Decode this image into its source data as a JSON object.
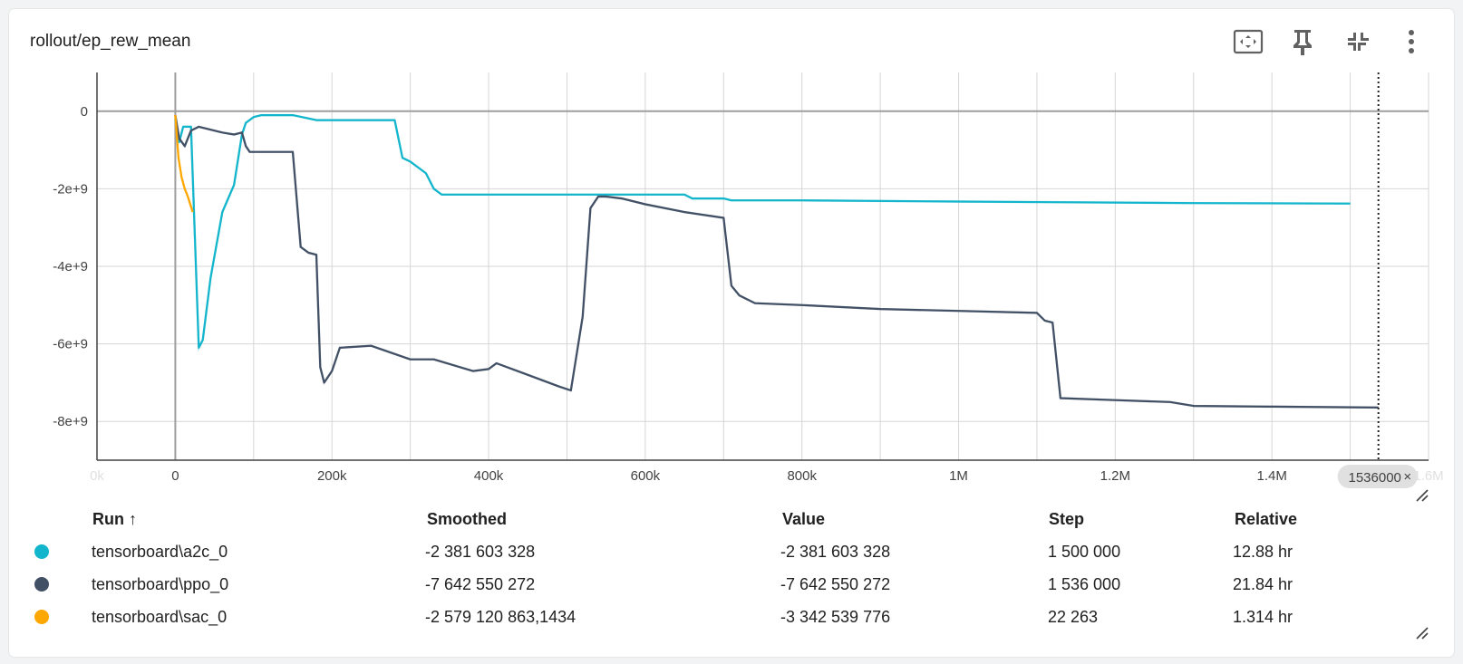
{
  "card": {
    "title": "rollout/ep_rew_mean",
    "toolbar": [
      {
        "name": "fit-to-data-icon"
      },
      {
        "name": "pin-icon"
      },
      {
        "name": "collapse-icon"
      },
      {
        "name": "more-vert-icon"
      }
    ]
  },
  "chart_data": {
    "type": "line",
    "title": "rollout/ep_rew_mean",
    "xlim": [
      -100000,
      1600000
    ],
    "ylim": [
      -9000000000,
      1000000000
    ],
    "x_ticks": [
      "0k",
      "0",
      "200k",
      "400k",
      "600k",
      "800k",
      "1M",
      "1.2M",
      "1.4M",
      "1.6M"
    ],
    "y_ticks": [
      "0",
      "-2e+9",
      "-4e+9",
      "-6e+9",
      "-8e+9"
    ],
    "hover_x_label": "1536000",
    "hover_x": 1536000,
    "grid": true,
    "series": [
      {
        "name": "tensorboard\\a2c_0",
        "color": "#12b5cb",
        "x": [
          0,
          5000,
          10000,
          20000,
          30000,
          35000,
          45000,
          60000,
          75000,
          85000,
          90000,
          100000,
          110000,
          150000,
          180000,
          280000,
          290000,
          300000,
          320000,
          330000,
          340000,
          400000,
          650000,
          660000,
          700000,
          710000,
          800000,
          1000000,
          1300000,
          1500000
        ],
        "y": [
          -200000000,
          -800000000,
          -400000000,
          -400000000,
          -6100000000,
          -5900000000,
          -4300000000,
          -2600000000,
          -1900000000,
          -600000000,
          -300000000,
          -150000000,
          -100000000,
          -100000000,
          -230000000,
          -230000000,
          -1200000000,
          -1300000000,
          -1600000000,
          -2000000000,
          -2150000000,
          -2150000000,
          -2150000000,
          -2250000000,
          -2250000000,
          -2300000000,
          -2300000000,
          -2330000000,
          -2370000000,
          -2381603328
        ]
      },
      {
        "name": "tensorboard\\ppo_0",
        "color": "#425066",
        "x": [
          0,
          5000,
          12000,
          20000,
          30000,
          50000,
          60000,
          75000,
          85000,
          90000,
          95000,
          110000,
          150000,
          160000,
          170000,
          180000,
          185000,
          190000,
          200000,
          210000,
          250000,
          300000,
          330000,
          380000,
          400000,
          410000,
          450000,
          490000,
          505000,
          520000,
          530000,
          540000,
          550000,
          570000,
          600000,
          650000,
          700000,
          710000,
          720000,
          740000,
          800000,
          900000,
          1000000,
          1100000,
          1110000,
          1120000,
          1130000,
          1200000,
          1270000,
          1300000,
          1400000,
          1536000
        ],
        "y": [
          -100000000,
          -700000000,
          -900000000,
          -500000000,
          -400000000,
          -500000000,
          -550000000,
          -600000000,
          -550000000,
          -900000000,
          -1050000000,
          -1050000000,
          -1050000000,
          -3500000000,
          -3650000000,
          -3700000000,
          -6600000000,
          -7000000000,
          -6700000000,
          -6100000000,
          -6050000000,
          -6400000000,
          -6400000000,
          -6700000000,
          -6650000000,
          -6500000000,
          -6800000000,
          -7100000000,
          -7200000000,
          -5300000000,
          -2500000000,
          -2200000000,
          -2200000000,
          -2250000000,
          -2400000000,
          -2600000000,
          -2750000000,
          -4500000000,
          -4750000000,
          -4950000000,
          -5000000000,
          -5100000000,
          -5150000000,
          -5200000000,
          -5400000000,
          -5450000000,
          -7400000000,
          -7450000000,
          -7500000000,
          -7600000000,
          -7620000000,
          -7642550272
        ]
      },
      {
        "name": "tensorboard\\sac_0",
        "color": "#ffa701",
        "x": [
          0,
          4000,
          8000,
          12000,
          16000,
          22263
        ],
        "y": [
          -100000000,
          -1200000000,
          -1700000000,
          -2000000000,
          -2200000000,
          -2600000000
        ]
      }
    ]
  },
  "legend": {
    "headers": {
      "run": "Run",
      "sort_arrow": "↑",
      "smoothed": "Smoothed",
      "value": "Value",
      "step": "Step",
      "relative": "Relative"
    },
    "rows": [
      {
        "run": "tensorboard\\a2c_0",
        "color": "#12b5cb",
        "smoothed": "-2 381 603 328",
        "value": "-2 381 603 328",
        "step": "1 500 000",
        "relative": "12.88 hr"
      },
      {
        "run": "tensorboard\\ppo_0",
        "color": "#425066",
        "smoothed": "-7 642 550 272",
        "value": "-7 642 550 272",
        "step": "1 536 000",
        "relative": "21.84 hr"
      },
      {
        "run": "tensorboard\\sac_0",
        "color": "#ffa701",
        "smoothed": "-2 579 120 863,1434",
        "value": "-3 342 539 776",
        "step": "22 263",
        "relative": "1.314 hr"
      }
    ]
  }
}
